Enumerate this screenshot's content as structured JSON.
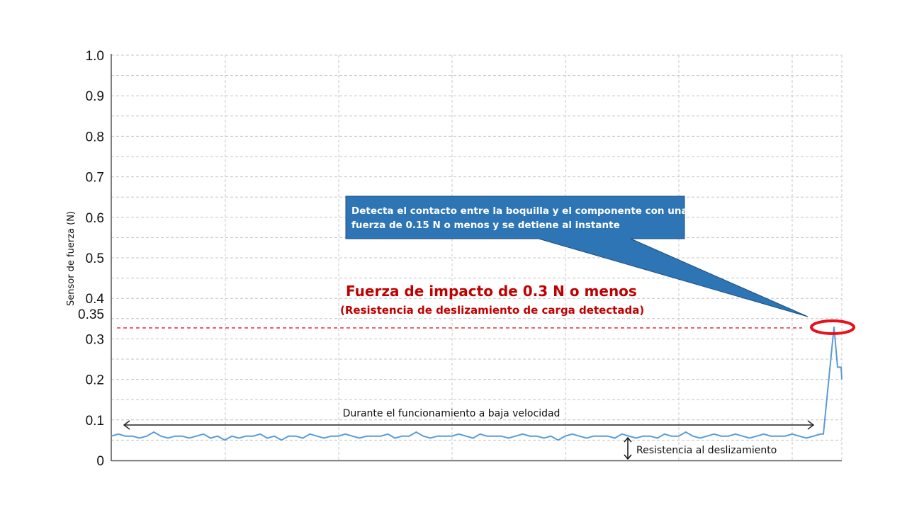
{
  "chart_data": {
    "type": "line",
    "title": "",
    "xlabel": "",
    "ylabel": "Sensor de fuerza (N)",
    "ylim": [
      0,
      1.0
    ],
    "yticks": [
      0,
      0.1,
      0.2,
      0.3,
      0.35,
      0.4,
      0.5,
      0.6,
      0.7,
      0.8,
      0.9,
      1.0
    ],
    "ytick_labels": [
      "0",
      "0.1",
      "0.2",
      "0.3",
      "0.35",
      "0.4",
      "0.5",
      "0.6",
      "0.7",
      "0.8",
      "0.9",
      "1.0"
    ],
    "grid": true,
    "xlim": [
      0,
      103
    ],
    "series": [
      {
        "color": "#5b9bd5",
        "baseline_values": [
          0.06,
          0.065,
          0.06,
          0.06,
          0.055,
          0.06,
          0.07,
          0.06,
          0.055,
          0.06,
          0.06,
          0.055,
          0.06,
          0.065,
          0.055,
          0.06,
          0.05,
          0.06,
          0.055,
          0.06,
          0.06,
          0.065,
          0.055,
          0.06,
          0.05,
          0.06,
          0.06,
          0.055,
          0.065,
          0.06,
          0.055,
          0.06,
          0.06,
          0.065,
          0.06,
          0.055,
          0.06,
          0.06,
          0.06,
          0.065,
          0.055,
          0.06,
          0.06,
          0.07,
          0.06,
          0.055,
          0.06,
          0.06,
          0.06,
          0.065,
          0.06,
          0.055,
          0.065,
          0.06,
          0.06,
          0.06,
          0.055,
          0.06,
          0.065,
          0.06,
          0.06,
          0.055,
          0.06,
          0.05,
          0.06,
          0.065,
          0.06,
          0.055,
          0.06,
          0.06,
          0.06,
          0.055,
          0.065,
          0.06,
          0.055,
          0.06,
          0.06,
          0.055,
          0.065,
          0.06,
          0.06,
          0.07,
          0.06,
          0.055,
          0.06,
          0.065,
          0.06,
          0.06,
          0.065,
          0.06,
          0.055,
          0.06,
          0.065,
          0.06,
          0.06,
          0.06,
          0.065,
          0.06,
          0.055,
          0.06,
          0.065
        ],
        "tail_points": [
          [
            100.4,
            0.065
          ],
          [
            101.9,
            0.33
          ],
          [
            102.4,
            0.23
          ],
          [
            102.9,
            0.23
          ],
          [
            103,
            0.2
          ]
        ]
      }
    ],
    "threshold": {
      "value": 0.327,
      "color": "#e0202a"
    },
    "annotations": {
      "callout": "Detecta el contacto entre la boquilla y el componente con una fuerza de 0.15 N o menos y se detiene al instante",
      "callout_line1": "Detecta el contacto entre la boquilla y el componente con una",
      "callout_line2": "fuerza de 0.15 N o menos y se detiene al instante",
      "callout_color": "#2e75b6",
      "impact_title": "Fuerza de impacto de 0.3 N o menos",
      "impact_subtitle": "(Resistencia de deslizamiento de carga detectada)",
      "impact_color": "#c00000",
      "low_speed": "Durante el funcionamiento a baja velocidad",
      "sliding_resistance": "Resistencia al deslizamiento",
      "peak_marker_color": "#e8101c"
    }
  }
}
